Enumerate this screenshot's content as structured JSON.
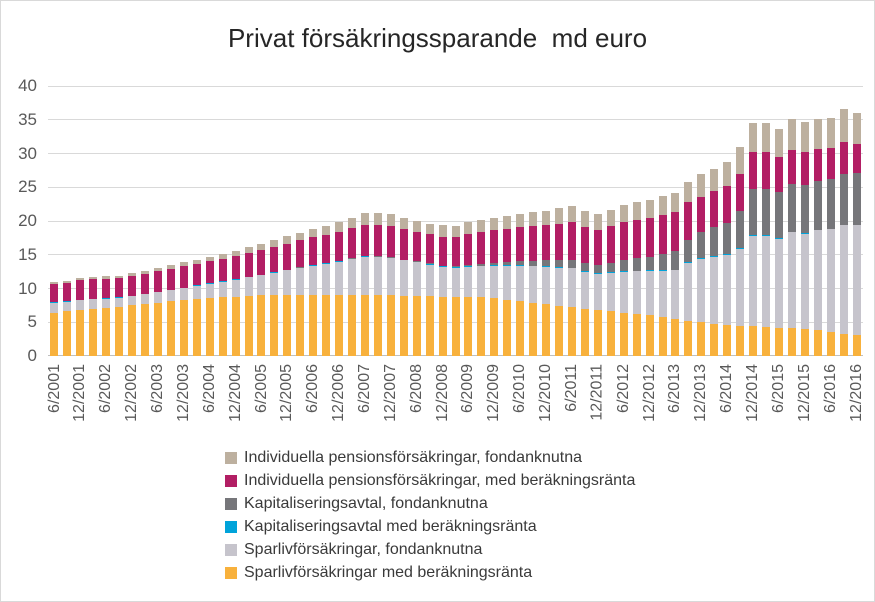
{
  "colors": {
    "background": "#FFFFFF",
    "frame_border": "#D9D9D9",
    "gridline": "#D9D9D9",
    "axis_line": "#BFBFBF",
    "axis_label": "#595959",
    "title_text": "#262626",
    "legend_text": "#3A3A3A"
  },
  "y_axis": {
    "ticks": [
      40,
      35,
      30,
      25,
      20,
      15,
      10,
      5,
      0
    ]
  },
  "chart_data": {
    "type": "bar",
    "stacked": true,
    "title": "Privat försäkringssparande  md euro",
    "ylabel": "",
    "xlabel": "",
    "ylim": [
      0,
      40
    ],
    "grid": true,
    "legend_position": "bottom",
    "x_label_interval": 2,
    "x_label_rotation": 90,
    "x": [
      "6/2001",
      "9/2001",
      "12/2001",
      "3/2002",
      "6/2002",
      "9/2002",
      "12/2002",
      "3/2003",
      "6/2003",
      "9/2003",
      "12/2003",
      "3/2004",
      "6/2004",
      "9/2004",
      "12/2004",
      "3/2005",
      "6/2005",
      "9/2005",
      "12/2005",
      "3/2006",
      "6/2006",
      "9/2006",
      "12/2006",
      "3/2007",
      "6/2007",
      "9/2007",
      "12/2007",
      "3/2008",
      "6/2008",
      "9/2008",
      "12/2008",
      "3/2009",
      "6/2009",
      "9/2009",
      "12/2009",
      "3/2010",
      "6/2010",
      "9/2010",
      "12/2010",
      "3/2011",
      "6/2011",
      "9/2011",
      "12/2011",
      "3/2012",
      "6/2012",
      "9/2012",
      "12/2012",
      "3/2013",
      "6/2013",
      "9/2013",
      "12/2013",
      "3/2014",
      "6/2014",
      "9/2014",
      "12/2014",
      "3/2015",
      "6/2015",
      "9/2015",
      "12/2015",
      "3/2016",
      "6/2016",
      "9/2016",
      "12/2016"
    ],
    "series": [
      {
        "name": "Sparlivförsäkringar med beräkningsränta",
        "color": "#F8B13C",
        "values": [
          6.4,
          6.6,
          6.8,
          6.95,
          7.1,
          7.3,
          7.5,
          7.7,
          7.9,
          8.1,
          8.3,
          8.45,
          8.6,
          8.7,
          8.8,
          8.9,
          9.0,
          9.05,
          9.1,
          9.1,
          9.1,
          9.1,
          9.1,
          9.1,
          9.1,
          9.05,
          9.0,
          8.95,
          8.9,
          8.85,
          8.8,
          8.8,
          8.8,
          8.7,
          8.6,
          8.35,
          8.1,
          7.9,
          7.7,
          7.45,
          7.2,
          7.0,
          6.8,
          6.6,
          6.4,
          6.25,
          6.1,
          5.8,
          5.5,
          5.25,
          5.0,
          4.8,
          4.6,
          4.5,
          4.4,
          4.3,
          4.2,
          4.1,
          4.0,
          3.8,
          3.6,
          3.3,
          3.1
        ]
      },
      {
        "name": "Sparlivförsäkringar, fondanknutna",
        "color": "#C6C4CC",
        "values": [
          1.5,
          1.45,
          1.5,
          1.45,
          1.4,
          1.35,
          1.4,
          1.5,
          1.6,
          1.7,
          1.8,
          1.95,
          2.1,
          2.3,
          2.5,
          2.75,
          3.0,
          3.3,
          3.6,
          3.95,
          4.3,
          4.6,
          4.9,
          5.25,
          5.6,
          5.6,
          5.5,
          5.25,
          5.0,
          4.7,
          4.4,
          4.25,
          4.4,
          4.6,
          4.8,
          5.05,
          5.3,
          5.4,
          5.5,
          5.65,
          5.8,
          5.5,
          5.4,
          5.75,
          6.1,
          6.3,
          6.5,
          6.85,
          7.2,
          8.6,
          9.4,
          9.9,
          10.4,
          11.4,
          13.4,
          13.5,
          13.2,
          14.2,
          14.1,
          14.8,
          15.2,
          16.1,
          16.3
        ]
      },
      {
        "name": "Kapitaliseringsavtal med beräkningsränta",
        "color": "#00A3DA",
        "values": [
          0.05,
          0.05,
          0.05,
          0.05,
          0.05,
          0.05,
          0.05,
          0.05,
          0.05,
          0.05,
          0.05,
          0.05,
          0.05,
          0.05,
          0.05,
          0.05,
          0.05,
          0.05,
          0.05,
          0.05,
          0.05,
          0.05,
          0.05,
          0.05,
          0.05,
          0.05,
          0.05,
          0.05,
          0.1,
          0.1,
          0.1,
          0.1,
          0.1,
          0.1,
          0.1,
          0.1,
          0.1,
          0.1,
          0.1,
          0.1,
          0.1,
          0.1,
          0.1,
          0.1,
          0.1,
          0.1,
          0.1,
          0.1,
          0.1,
          0.1,
          0.1,
          0.08,
          0.08,
          0.08,
          0.08,
          0.08,
          0.08,
          0.08,
          0.08,
          0.08,
          0.08,
          0.08,
          0.08
        ]
      },
      {
        "name": "Kapitaliseringsavtal, fondanknutna",
        "color": "#76767A",
        "values": [
          0,
          0,
          0,
          0,
          0,
          0,
          0,
          0,
          0,
          0,
          0,
          0,
          0,
          0,
          0,
          0,
          0,
          0,
          0,
          0.02,
          0.05,
          0.05,
          0.05,
          0.05,
          0.05,
          0.05,
          0.05,
          0.05,
          0.05,
          0.08,
          0.1,
          0.15,
          0.2,
          0.25,
          0.3,
          0.45,
          0.6,
          0.75,
          0.9,
          1.05,
          1.2,
          1.2,
          1.2,
          1.4,
          1.6,
          1.8,
          2.0,
          2.35,
          2.7,
          3.3,
          3.9,
          4.3,
          4.7,
          5.5,
          6.8,
          6.9,
          6.8,
          7.1,
          7.1,
          7.2,
          7.3,
          7.5,
          7.6
        ]
      },
      {
        "name": "Individuella pensionsförsäkringar, med beräkningsränta",
        "color": "#B21E64",
        "values": [
          2.7,
          2.7,
          2.9,
          2.9,
          2.9,
          2.85,
          2.9,
          2.95,
          3.0,
          3.1,
          3.2,
          3.25,
          3.3,
          3.4,
          3.5,
          3.6,
          3.7,
          3.8,
          3.9,
          4.0,
          4.1,
          4.2,
          4.3,
          4.45,
          4.6,
          4.65,
          4.7,
          4.55,
          4.4,
          4.35,
          4.3,
          4.35,
          4.6,
          4.7,
          4.8,
          4.9,
          5.0,
          5.1,
          5.2,
          5.35,
          5.5,
          5.3,
          5.2,
          5.4,
          5.6,
          5.65,
          5.7,
          5.75,
          5.8,
          5.5,
          5.2,
          5.3,
          5.4,
          5.5,
          5.5,
          5.4,
          5.2,
          5.1,
          5.0,
          4.8,
          4.6,
          4.7,
          4.4
        ]
      },
      {
        "name": "Individuella pensionsförsäkringar, fondanknutna",
        "color": "#BDB09F",
        "values": [
          0.3,
          0.3,
          0.35,
          0.35,
          0.35,
          0.35,
          0.4,
          0.42,
          0.45,
          0.5,
          0.55,
          0.6,
          0.65,
          0.7,
          0.75,
          0.8,
          0.9,
          1.0,
          1.1,
          1.18,
          1.25,
          1.32,
          1.4,
          1.6,
          1.8,
          1.8,
          1.75,
          1.6,
          1.5,
          1.55,
          1.65,
          1.6,
          1.8,
          1.85,
          1.9,
          1.95,
          2.0,
          2.05,
          2.1,
          2.3,
          2.5,
          2.35,
          2.3,
          2.45,
          2.6,
          2.65,
          2.7,
          2.8,
          2.9,
          3.1,
          3.3,
          3.4,
          3.6,
          4.0,
          4.3,
          4.4,
          4.2,
          4.5,
          4.35,
          4.5,
          4.45,
          4.9,
          4.6
        ]
      }
    ]
  }
}
